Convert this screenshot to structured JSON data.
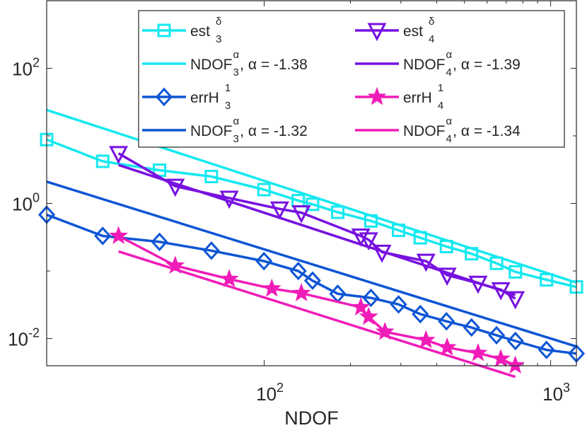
{
  "chart_data": {
    "type": "line",
    "xscale": "log",
    "yscale": "log",
    "xlim": [
      17.4,
      1230
    ],
    "ylim": [
      0.00396,
      1000
    ],
    "xlabel": "NDOF",
    "ylabel": "",
    "grid": false,
    "legend_position": "top-right",
    "legend_columns": 2,
    "x_ticks": [
      {
        "value": 100,
        "base": "10",
        "exp": "2"
      },
      {
        "value": 1000,
        "base": "10",
        "exp": "3"
      }
    ],
    "y_ticks": [
      {
        "value": 0.01,
        "base": "10",
        "exp": "-2"
      },
      {
        "value": 1,
        "base": "10",
        "exp": "0"
      },
      {
        "value": 100,
        "base": "10",
        "exp": "2"
      }
    ],
    "series": [
      {
        "key": "est3",
        "legend": {
          "main": "est",
          "sup": "δ",
          "sub": "3",
          "rest": ""
        },
        "color": "#16e8f0",
        "marker": "square",
        "x": [
          17.4,
          27.3,
          43.1,
          65.4,
          99.8,
          131.5,
          147.5,
          180.6,
          235.8,
          294.5,
          350.7,
          432.7,
          529.4,
          647.4,
          753.5,
          967.4,
          1230.3
        ],
        "y": [
          8.8,
          4.2,
          3.1,
          2.5,
          1.6,
          1.1,
          0.97,
          0.74,
          0.55,
          0.4,
          0.31,
          0.23,
          0.18,
          0.13,
          0.097,
          0.074,
          0.058
        ]
      },
      {
        "key": "fit-est3",
        "legend": {
          "main": "NDOF",
          "sup": "α",
          "sub": "3",
          "rest": ", α = -1.38"
        },
        "color": "#16e8f0",
        "marker": "none",
        "slope": -1.38,
        "x": [
          17.4,
          1230.3
        ],
        "y": [
          24.2,
          0.0673
        ]
      },
      {
        "key": "est4",
        "legend": {
          "main": "est",
          "sup": "δ",
          "sub": "4",
          "rest": ""
        },
        "color": "#7711e0",
        "marker": "triangle-down",
        "x": [
          31.0,
          48.9,
          75.5,
          113.2,
          134.8,
          217.4,
          231.5,
          257.7,
          367.1,
          435.1,
          558.0,
          670.0,
          752.7
        ],
        "y": [
          5.5,
          1.8,
          1.2,
          0.83,
          0.73,
          0.33,
          0.29,
          0.19,
          0.14,
          0.087,
          0.066,
          0.053,
          0.039
        ]
      },
      {
        "key": "fit-est4",
        "legend": {
          "main": "NDOF",
          "sup": "α",
          "sub": "4",
          "rest": ", α = -1.39"
        },
        "color": "#7711e0",
        "marker": "none",
        "slope": -1.39,
        "x": [
          31.0,
          752.7
        ],
        "y": [
          3.71,
          0.044
        ]
      },
      {
        "key": "errH3",
        "legend": {
          "main": "errH",
          "sup": "1",
          "sub": "3",
          "rest": ""
        },
        "color": "#0d55d5",
        "marker": "diamond",
        "x": [
          17.4,
          27.3,
          43.1,
          65.4,
          99.8,
          131.5,
          147.5,
          180.6,
          235.8,
          294.5,
          350.7,
          432.7,
          529.4,
          647.4,
          753.5,
          967.4,
          1230.3
        ],
        "y": [
          0.68,
          0.33,
          0.27,
          0.2,
          0.14,
          0.1,
          0.072,
          0.046,
          0.04,
          0.032,
          0.023,
          0.018,
          0.0146,
          0.0112,
          0.0092,
          0.0068,
          0.006
        ]
      },
      {
        "key": "fit-errH3",
        "legend": {
          "main": "NDOF",
          "sup": "α",
          "sub": "3",
          "rest": ", α = -1.32"
        },
        "color": "#0d55d5",
        "marker": "none",
        "slope": -1.32,
        "x": [
          17.4,
          1230.3
        ],
        "y": [
          2.1,
          0.00762
        ]
      },
      {
        "key": "errH4",
        "legend": {
          "main": "errH",
          "sup": "1",
          "sub": "4",
          "rest": ""
        },
        "color": "#f01cb8",
        "marker": "star",
        "x": [
          31.0,
          48.9,
          75.5,
          106.3,
          134.8,
          217.4,
          231.5,
          264.0,
          367.1,
          435.1,
          558.0,
          670.0,
          752.7
        ],
        "y": [
          0.33,
          0.12,
          0.076,
          0.055,
          0.047,
          0.029,
          0.021,
          0.0126,
          0.0095,
          0.0074,
          0.0061,
          0.005,
          0.004
        ]
      },
      {
        "key": "fit-errH4",
        "legend": {
          "main": "NDOF",
          "sup": "α",
          "sub": "4",
          "rest": ", α = -1.34"
        },
        "color": "#f01cb8",
        "marker": "none",
        "slope": -1.34,
        "x": [
          31.0,
          752.7
        ],
        "y": [
          0.195,
          0.00271
        ]
      }
    ]
  }
}
